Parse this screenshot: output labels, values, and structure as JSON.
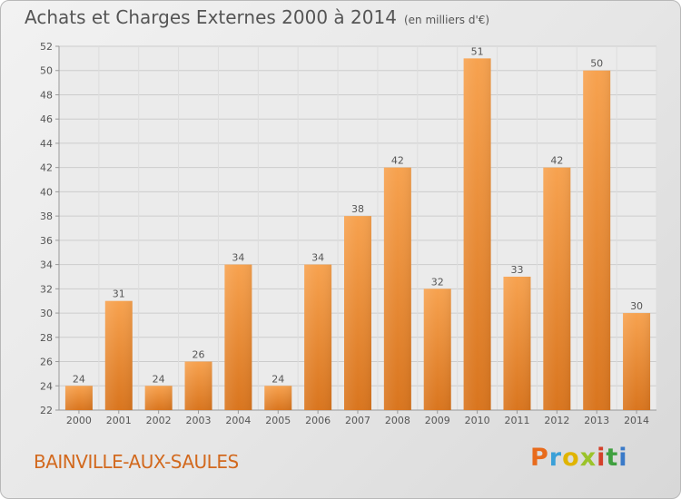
{
  "title": "Achats et Charges Externes 2000 à 2014",
  "unit": "(en milliers d'€)",
  "commune": "BAINVILLE-AUX-SAULES",
  "logo": "Proxiti",
  "logo_colors": [
    "#e86b1c",
    "#3aa0d8",
    "#e0b400",
    "#9bc32a",
    "#d4402a",
    "#40a040",
    "#3a7ac8"
  ],
  "colors": {
    "bar_top": "#f7a24f",
    "bar_bottom": "#d9751e",
    "text": "#555555",
    "grid": "#cccccc"
  },
  "chart_data": {
    "type": "bar",
    "title": "Achats et Charges Externes 2000 à 2014",
    "subtitle": "(en milliers d'€)",
    "xlabel": "",
    "ylabel": "",
    "categories": [
      "2000",
      "2001",
      "2002",
      "2003",
      "2004",
      "2005",
      "2006",
      "2007",
      "2008",
      "2009",
      "2010",
      "2011",
      "2012",
      "2013",
      "2014"
    ],
    "values": [
      24,
      31,
      24,
      26,
      34,
      24,
      34,
      38,
      42,
      32,
      51,
      33,
      42,
      50,
      30
    ],
    "ylim": [
      22,
      52
    ],
    "yticks": [
      22,
      24,
      26,
      28,
      30,
      32,
      34,
      36,
      38,
      40,
      42,
      44,
      46,
      48,
      50,
      52
    ],
    "grid": true,
    "data_labels": true
  }
}
